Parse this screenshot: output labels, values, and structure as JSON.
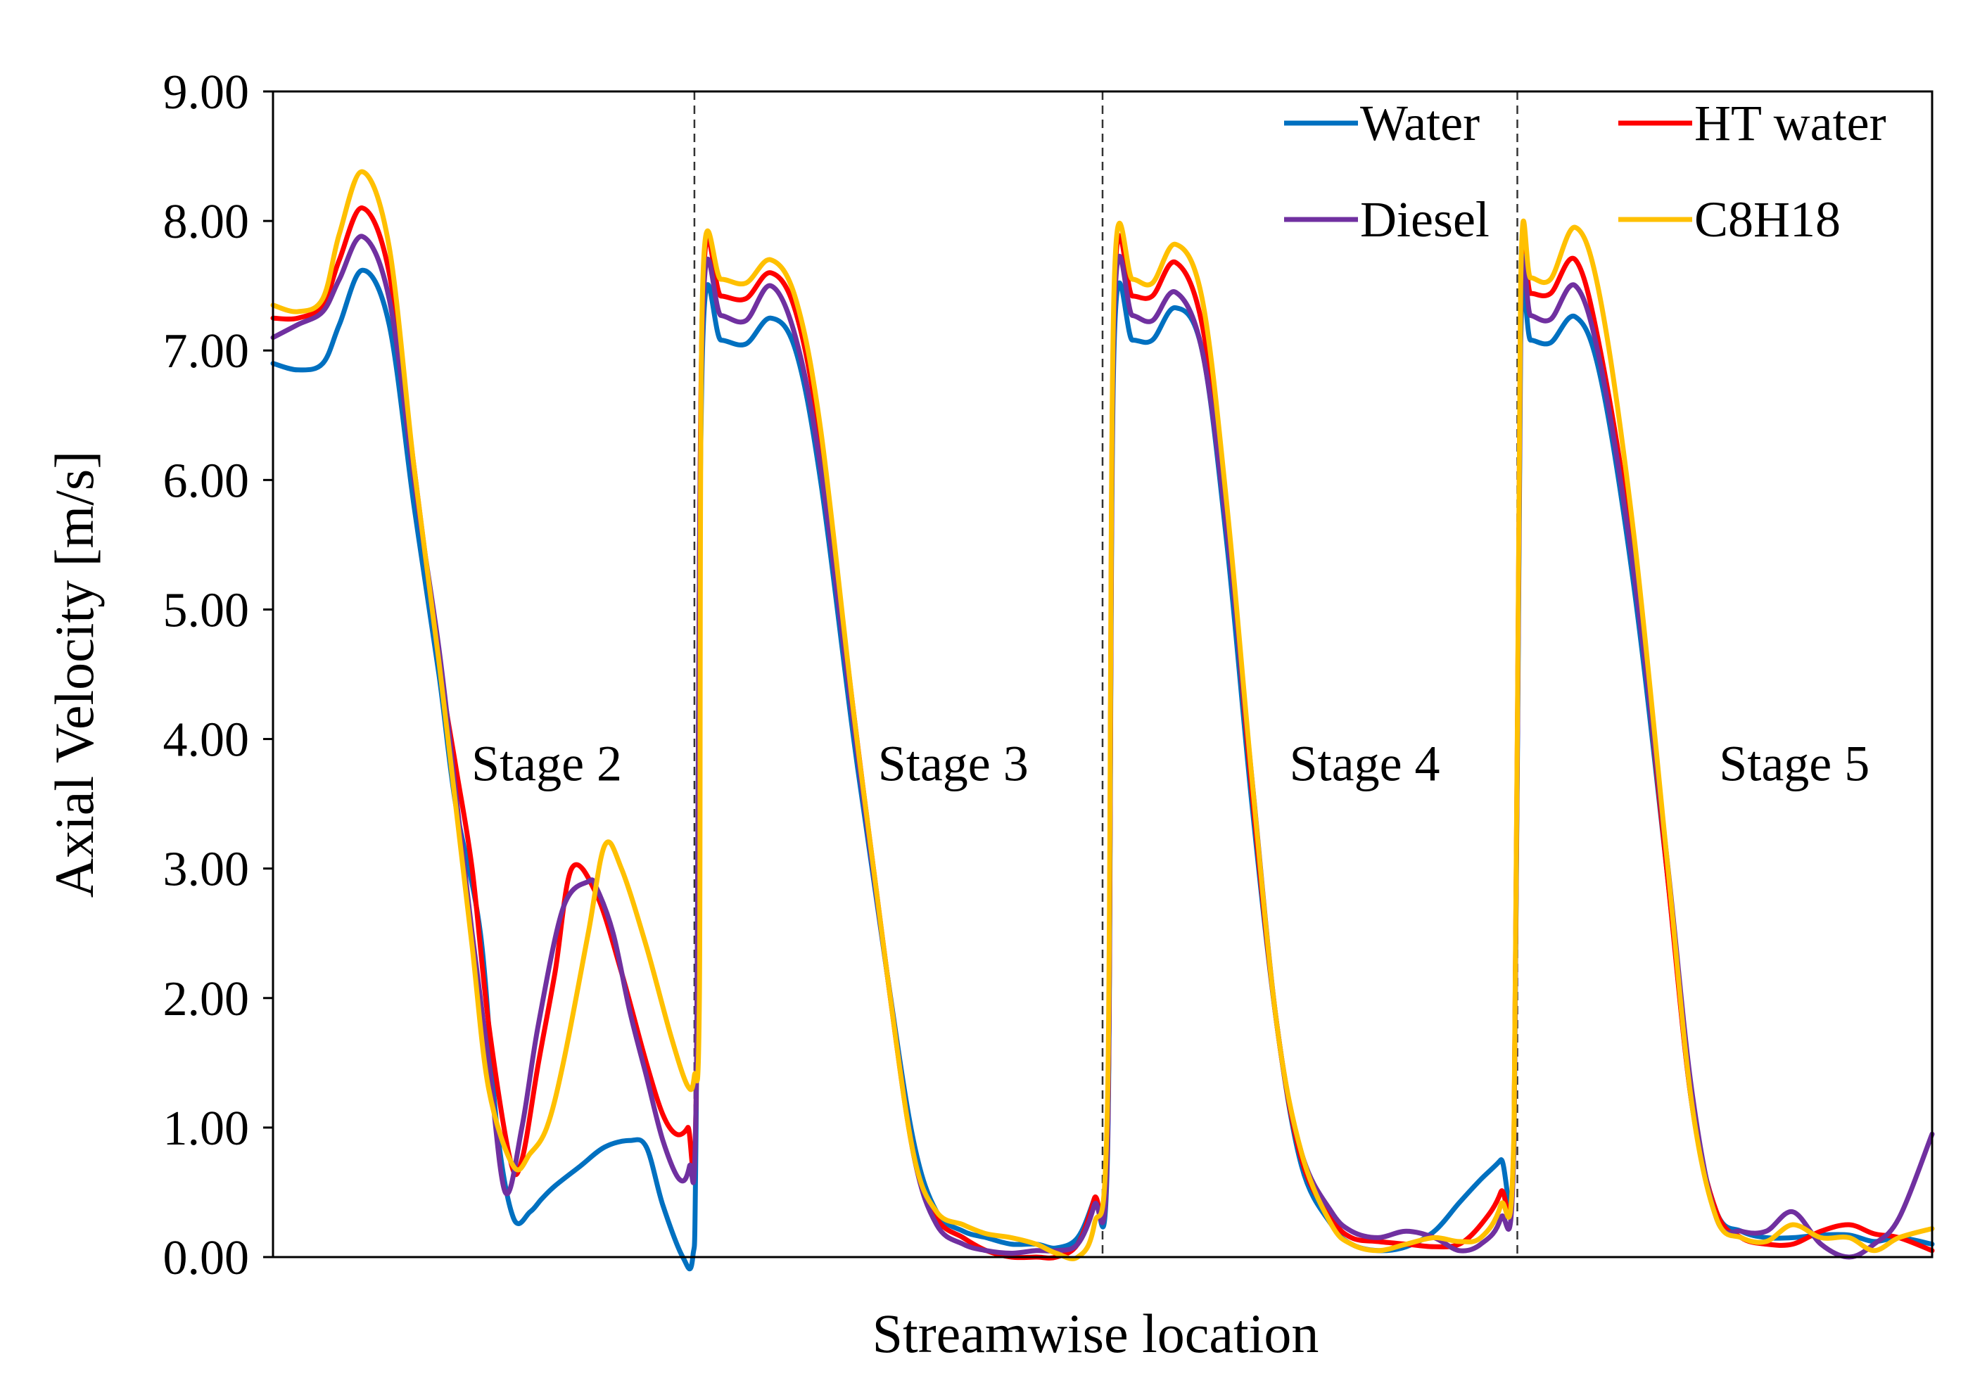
{
  "chart_data": {
    "type": "line",
    "title": "",
    "xlabel": "Streamwise location",
    "ylabel": "Axial Velocity [m/s]",
    "xlim": [
      0,
      100
    ],
    "ylim": [
      0,
      9
    ],
    "yticks": [
      "0.00",
      "1.00",
      "2.00",
      "3.00",
      "4.00",
      "5.00",
      "6.00",
      "7.00",
      "8.00",
      "9.00"
    ],
    "ytick_values": [
      0,
      1,
      2,
      3,
      4,
      5,
      6,
      7,
      8,
      9
    ],
    "grid": false,
    "legend_position": "top-right",
    "stage_dividers": [
      25.4,
      50,
      75
    ],
    "stage_labels": [
      {
        "label": "Stage 2",
        "x": 16.5,
        "y": 3.68
      },
      {
        "label": "Stage 3",
        "x": 41,
        "y": 3.68
      },
      {
        "label": "Stage 4",
        "x": 65.8,
        "y": 3.68
      },
      {
        "label": "Stage 5",
        "x": 91.7,
        "y": 3.68
      }
    ],
    "series": [
      {
        "name": "Water",
        "color": "#0070C0",
        "x": [
          0,
          1.5,
          3,
          4,
          5.4,
          7,
          8.5,
          10,
          11,
          12.5,
          13.5,
          14.5,
          15.5,
          16.2,
          17,
          18.5,
          20,
          21.5,
          22.5,
          23.5,
          24.7,
          25.3,
          25.5,
          25.9,
          27,
          28.5,
          30,
          31.5,
          33,
          35,
          37,
          38.6,
          40,
          41.6,
          43,
          44.5,
          46,
          47.2,
          48.5,
          49.5,
          50.3,
          50.7,
          51.8,
          53,
          54.4,
          56,
          57.5,
          59,
          60.5,
          62,
          63.8,
          65,
          66.6,
          68.3,
          70,
          71.5,
          72.8,
          74,
          74.8,
          75.2,
          75.8,
          77,
          78.5,
          80,
          82,
          84,
          85.5,
          87,
          88.5,
          90,
          91.6,
          93.3,
          95,
          96.5,
          98,
          100
        ],
        "values": [
          6.9,
          6.85,
          6.9,
          7.2,
          7.62,
          7.2,
          5.8,
          4.5,
          3.5,
          2.5,
          1.0,
          0.3,
          0.35,
          0.45,
          0.55,
          0.7,
          0.85,
          0.9,
          0.85,
          0.4,
          0.0,
          0.0,
          1.0,
          7.05,
          7.08,
          7.05,
          7.25,
          7.0,
          6.0,
          4.0,
          2.2,
          0.9,
          0.35,
          0.2,
          0.15,
          0.1,
          0.1,
          0.07,
          0.15,
          0.45,
          0.8,
          7.05,
          7.08,
          7.08,
          7.33,
          7.0,
          5.5,
          3.5,
          1.8,
          0.7,
          0.25,
          0.1,
          0.05,
          0.08,
          0.2,
          0.42,
          0.6,
          0.75,
          0.9,
          7.05,
          7.08,
          7.06,
          7.26,
          6.8,
          5.2,
          3.0,
          1.2,
          0.35,
          0.2,
          0.15,
          0.15,
          0.17,
          0.17,
          0.12,
          0.15,
          0.1
        ]
      },
      {
        "name": "HT water",
        "color": "#FF0000",
        "x": [
          0,
          1.5,
          3,
          4,
          5.4,
          7,
          8.5,
          10,
          11,
          12,
          13,
          14.3,
          15,
          16,
          17,
          18,
          19.5,
          21,
          22.5,
          23.5,
          24.3,
          25,
          25.5,
          25.9,
          27,
          28.5,
          30,
          31.5,
          33,
          35,
          37,
          38.6,
          40,
          41.6,
          43,
          44.5,
          46,
          47.2,
          48.5,
          49.5,
          50.3,
          50.7,
          51.8,
          53,
          54.4,
          56,
          57.5,
          59,
          60.5,
          62,
          63.8,
          65,
          66.6,
          68.3,
          70,
          71.5,
          72.8,
          74,
          74.8,
          75.2,
          75.8,
          77,
          78.5,
          80,
          82,
          84,
          85.5,
          87,
          88.5,
          90,
          91.6,
          93.3,
          95,
          96.5,
          98,
          100
        ],
        "values": [
          7.25,
          7.25,
          7.35,
          7.7,
          8.1,
          7.6,
          6.1,
          4.6,
          3.8,
          3.0,
          1.8,
          0.75,
          0.75,
          1.5,
          2.2,
          3.0,
          2.8,
          2.2,
          1.5,
          1.1,
          0.95,
          1.0,
          1.2,
          7.4,
          7.42,
          7.4,
          7.6,
          7.3,
          6.3,
          4.2,
          2.2,
          0.8,
          0.3,
          0.15,
          0.05,
          0.0,
          0.0,
          0.0,
          0.1,
          0.45,
          0.9,
          7.4,
          7.42,
          7.42,
          7.68,
          7.2,
          5.7,
          3.6,
          1.8,
          0.75,
          0.3,
          0.15,
          0.12,
          0.1,
          0.08,
          0.1,
          0.25,
          0.5,
          0.95,
          7.4,
          7.44,
          7.44,
          7.7,
          7.0,
          5.4,
          3.0,
          1.2,
          0.35,
          0.15,
          0.1,
          0.1,
          0.2,
          0.25,
          0.18,
          0.15,
          0.05
        ]
      },
      {
        "name": "Diesel",
        "color": "#7030A0",
        "x": [
          0,
          1.5,
          3,
          4,
          5.4,
          7,
          8.5,
          10,
          11,
          12,
          13,
          14,
          15,
          16,
          17.5,
          19,
          19.5,
          20.5,
          21.5,
          22.5,
          23.5,
          24.5,
          25.1,
          25.5,
          25.9,
          27,
          28.5,
          30,
          31.5,
          33,
          35,
          37,
          38.6,
          40,
          41.6,
          43,
          44.5,
          46,
          47.2,
          48.5,
          49.5,
          50.3,
          50.7,
          51.8,
          53,
          54.4,
          56,
          57.5,
          59,
          60.5,
          62,
          63.8,
          65,
          66.6,
          68.3,
          70,
          71.5,
          72.8,
          74,
          74.8,
          75.2,
          75.8,
          77,
          78.5,
          80,
          82,
          84,
          85.5,
          87,
          88.5,
          90,
          91.6,
          93.3,
          95,
          96.5,
          98,
          100
        ],
        "values": [
          7.1,
          7.2,
          7.3,
          7.55,
          7.88,
          7.4,
          6.0,
          4.7,
          3.6,
          2.5,
          1.5,
          0.5,
          1.0,
          1.8,
          2.7,
          2.9,
          2.85,
          2.5,
          1.9,
          1.4,
          0.9,
          0.6,
          0.7,
          1.2,
          7.25,
          7.27,
          7.23,
          7.5,
          7.1,
          6.1,
          4.1,
          2.2,
          0.8,
          0.25,
          0.1,
          0.05,
          0.03,
          0.05,
          0.05,
          0.1,
          0.4,
          0.9,
          7.25,
          7.27,
          7.23,
          7.45,
          7.0,
          5.6,
          3.7,
          1.8,
          0.8,
          0.35,
          0.2,
          0.15,
          0.2,
          0.15,
          0.05,
          0.1,
          0.3,
          0.9,
          7.25,
          7.27,
          7.24,
          7.5,
          6.9,
          5.3,
          3.1,
          1.3,
          0.3,
          0.2,
          0.2,
          0.35,
          0.1,
          0.0,
          0.1,
          0.3,
          0.95
        ]
      },
      {
        "name": "C8H18",
        "color": "#FFC000",
        "x": [
          0,
          1.5,
          3,
          4,
          5.4,
          7,
          8.5,
          10,
          11,
          12,
          13,
          14.5,
          15.5,
          16.5,
          17.5,
          19,
          20,
          21,
          22.5,
          24,
          25,
          25.4,
          25.7,
          25.9,
          27,
          28.5,
          30,
          31.5,
          33,
          35,
          37,
          38.6,
          40,
          41.6,
          43,
          44.5,
          46,
          47.2,
          48.5,
          49.5,
          50.3,
          50.7,
          51.8,
          53,
          54.4,
          56,
          57.5,
          59,
          60.5,
          62,
          63.8,
          65,
          66.6,
          68.3,
          70,
          71.5,
          72.8,
          74,
          74.8,
          75.2,
          75.8,
          77,
          78.5,
          80,
          82,
          84,
          85.5,
          87,
          88.5,
          90,
          91.6,
          93.3,
          95,
          96.5,
          98,
          100
        ],
        "values": [
          7.35,
          7.3,
          7.4,
          7.9,
          8.38,
          7.8,
          6.1,
          4.6,
          3.5,
          2.4,
          1.3,
          0.7,
          0.8,
          1.0,
          1.5,
          2.5,
          3.18,
          3.0,
          2.4,
          1.7,
          1.32,
          1.4,
          2.0,
          7.5,
          7.55,
          7.52,
          7.7,
          7.4,
          6.4,
          4.2,
          2.2,
          0.8,
          0.35,
          0.25,
          0.18,
          0.15,
          0.1,
          0.03,
          0.0,
          0.25,
          1.2,
          7.5,
          7.55,
          7.52,
          7.82,
          7.4,
          5.8,
          3.7,
          1.8,
          0.8,
          0.25,
          0.1,
          0.05,
          0.1,
          0.15,
          0.12,
          0.15,
          0.4,
          1.0,
          7.5,
          7.56,
          7.55,
          7.95,
          7.4,
          5.6,
          3.1,
          1.2,
          0.3,
          0.15,
          0.12,
          0.25,
          0.15,
          0.15,
          0.05,
          0.15,
          0.22
        ]
      }
    ]
  }
}
